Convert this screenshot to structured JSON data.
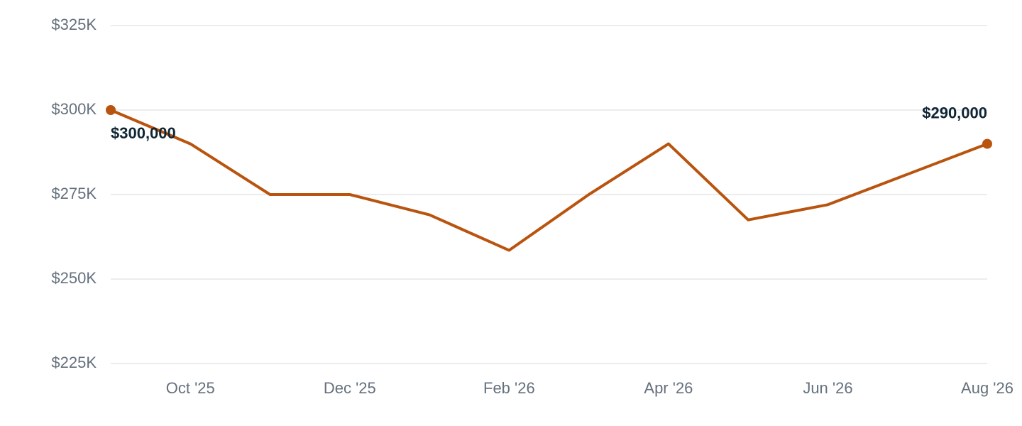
{
  "chart_data": {
    "type": "line",
    "title": "",
    "xlabel": "",
    "ylabel": "",
    "x": [
      "2025-09",
      "2025-10",
      "2025-11",
      "2025-12",
      "2026-01",
      "2026-02",
      "2026-03",
      "2026-04",
      "2026-05",
      "2026-06",
      "2026-07",
      "2026-08"
    ],
    "series": [
      {
        "values": [
          300000,
          290000,
          275000,
          275000,
          269000,
          258500,
          275000,
          290000,
          267500,
          272000,
          281000,
          290000
        ],
        "color": "#b9540f"
      }
    ],
    "ylim": [
      225000,
      325000
    ],
    "y_ticks": [
      {
        "value": 325000,
        "label": "$325K"
      },
      {
        "value": 300000,
        "label": "$300K"
      },
      {
        "value": 275000,
        "label": "$275K"
      },
      {
        "value": 250000,
        "label": "$250K"
      },
      {
        "value": 225000,
        "label": "$225K"
      }
    ],
    "x_ticks": [
      {
        "value": "2025-10",
        "label": "Oct '25"
      },
      {
        "value": "2025-12",
        "label": "Dec '25"
      },
      {
        "value": "2026-02",
        "label": "Feb '26"
      },
      {
        "value": "2026-04",
        "label": "Apr '26"
      },
      {
        "value": "2026-06",
        "label": "Jun '26"
      },
      {
        "value": "2026-08",
        "label": "Aug '26"
      }
    ],
    "data_labels": [
      {
        "x": "2025-09",
        "value": 300000,
        "label": "$300,000"
      },
      {
        "x": "2026-08",
        "value": 290000,
        "label": "$290,000"
      }
    ],
    "marked_points": [
      "2025-09",
      "2026-08"
    ],
    "grid": true,
    "legend": "none"
  }
}
